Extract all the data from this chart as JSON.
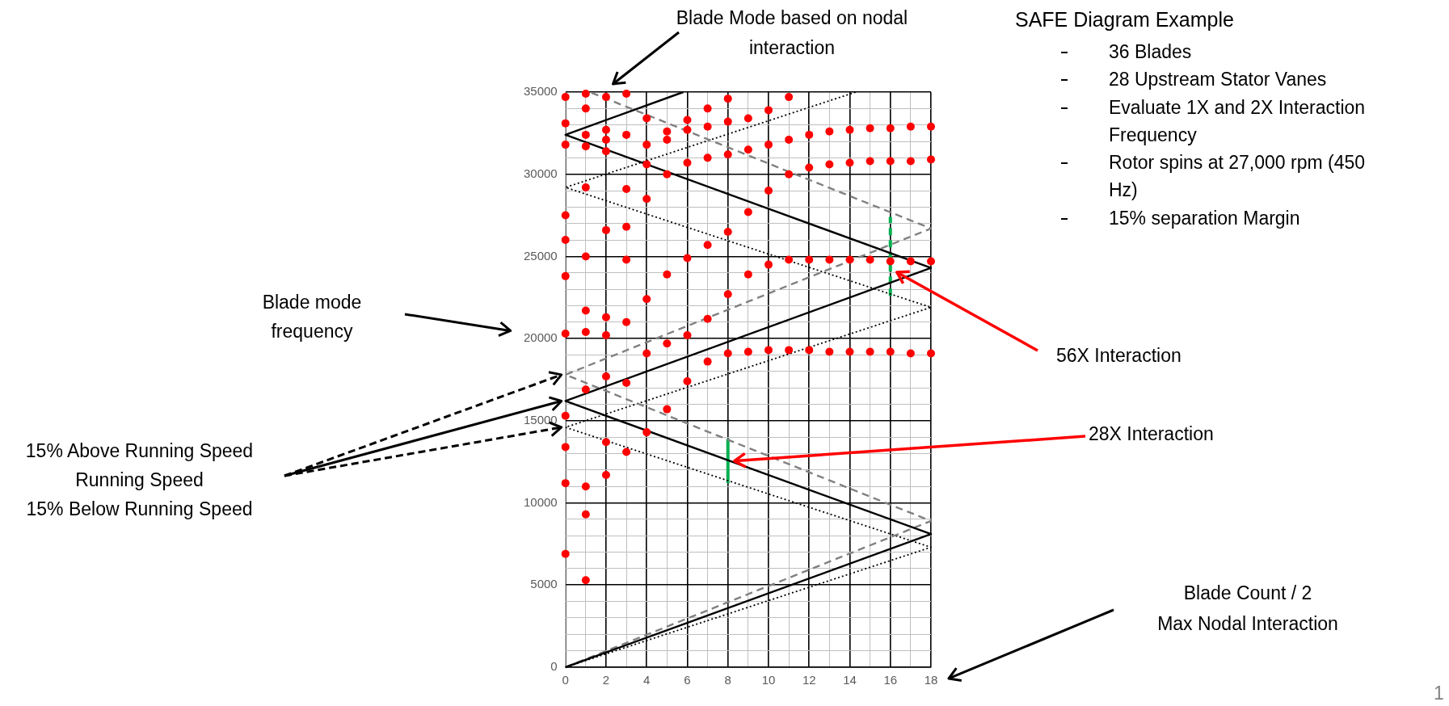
{
  "chart_data": {
    "type": "scatter",
    "title": "SAFE Diagram Example",
    "annotations": [
      "Blade Mode based on nodal interaction",
      "Blade mode frequency",
      "15% Above Running Speed",
      "Running Speed",
      "15% Below Running Speed",
      "56X Interaction",
      "28X Interaction",
      "Blade Count / 2",
      "Max Nodal Interaction",
      "1",
      "36 Blades",
      "28 Upstream Stator Vanes",
      "Evaluate 1X and 2X Interaction Frequency",
      "Rotor spins at 27,000 rpm (450 Hz)",
      "15% separation Margin"
    ],
    "series": [
      {
        "color": "#ff0000",
        "marker": "circle",
        "x": [
          0,
          0,
          0,
          0,
          0,
          0,
          0,
          0,
          0,
          0,
          0,
          1,
          1,
          1,
          1,
          1,
          1,
          1,
          1,
          1,
          1,
          1,
          1,
          2,
          2,
          2,
          2,
          2,
          2,
          2,
          2,
          2,
          2,
          3,
          3,
          3,
          3,
          3,
          3,
          3,
          3,
          4,
          4,
          4,
          4,
          4,
          4,
          4,
          5,
          5,
          5,
          5,
          5,
          5,
          6,
          6,
          6,
          6,
          6,
          6,
          7,
          7,
          7,
          7,
          7,
          7,
          8,
          8,
          8,
          8,
          8,
          8,
          9,
          9,
          9,
          9,
          9,
          10,
          10,
          10,
          10,
          10,
          11,
          11,
          11,
          11,
          11,
          12,
          12,
          12,
          12,
          13,
          13,
          13,
          13,
          14,
          14,
          14,
          14,
          15,
          15,
          15,
          15,
          16,
          16,
          16,
          16,
          17,
          17,
          17,
          17,
          18,
          18,
          18,
          18
        ],
        "values": [
          34700,
          33100,
          31800,
          27500,
          26000,
          23800,
          20300,
          15300,
          13400,
          11200,
          6900,
          34900,
          34000,
          32400,
          31700,
          29200,
          25000,
          21700,
          20400,
          16900,
          11000,
          9300,
          5300,
          34700,
          32700,
          32100,
          31400,
          26600,
          21300,
          20200,
          17700,
          13700,
          11700,
          34900,
          32400,
          29100,
          26800,
          24800,
          21000,
          17300,
          13100,
          33400,
          31800,
          30600,
          28500,
          22400,
          19100,
          14300,
          32600,
          32100,
          30000,
          23900,
          19700,
          15700,
          33300,
          32700,
          30700,
          24900,
          20200,
          17400,
          34000,
          32900,
          31000,
          25700,
          21200,
          18600,
          34600,
          33200,
          31200,
          26500,
          22700,
          19100,
          33400,
          31500,
          27700,
          23900,
          19200,
          33900,
          31800,
          29000,
          24500,
          19300,
          34700,
          32100,
          30000,
          24800,
          19300,
          32400,
          30400,
          24800,
          19300,
          32600,
          30600,
          24800,
          19200,
          32700,
          30700,
          24800,
          19200,
          32800,
          30800,
          24800,
          19200,
          32800,
          30800,
          24700,
          19200,
          32900,
          30800,
          24700,
          19100,
          32900,
          30900,
          24700,
          19100
        ]
      },
      {
        "type": "line",
        "color": "#000000",
        "marker": "none",
        "line_style": "solid",
        "x": [
          0,
          18,
          0,
          18,
          0,
          5.8
        ],
        "values": [
          0,
          8100,
          16200,
          24300,
          32400,
          35000
        ]
      },
      {
        "type": "line",
        "color": "#808080",
        "marker": "none",
        "line_style": "dashed",
        "x": [
          0,
          18,
          0,
          18,
          1.2
        ],
        "values": [
          0,
          8900,
          17800,
          26700,
          35000
        ]
      },
      {
        "type": "line",
        "color": "#000000",
        "marker": "none",
        "line_style": "dotted",
        "x": [
          0,
          18,
          0,
          18,
          0,
          14.3
        ],
        "values": [
          0,
          7300,
          14600,
          21900,
          29200,
          35000
        ]
      },
      {
        "type": "line",
        "color": "#00b050",
        "marker": "none",
        "line_style": "solid",
        "x": [
          8,
          8
        ],
        "values": [
          11200,
          13900
        ]
      },
      {
        "type": "line",
        "color": "#00b050",
        "marker": "none",
        "line_style": "dashed",
        "x": [
          16,
          16
        ],
        "values": [
          22600,
          27400
        ]
      }
    ],
    "xlim": [
      0,
      18
    ],
    "xticks": [
      0,
      {
        "value": 1,
        "label": null
      },
      2,
      {
        "value": 3,
        "label": null
      },
      4,
      {
        "value": 5,
        "label": null
      },
      6,
      {
        "value": 7,
        "label": null
      },
      8,
      {
        "value": 9,
        "label": null
      },
      10,
      {
        "value": 11,
        "label": null
      },
      12,
      {
        "value": 13,
        "label": null
      },
      14,
      {
        "value": 15,
        "label": null
      },
      16,
      {
        "value": 17,
        "label": null
      },
      18
    ],
    "ylim": [
      0,
      35000
    ],
    "yticks": [
      0,
      {
        "value": 1000,
        "label": null
      },
      {
        "value": 2000,
        "label": null
      },
      {
        "value": 3000,
        "label": null
      },
      {
        "value": 4000,
        "label": null
      },
      5000,
      {
        "value": 6000,
        "label": null
      },
      {
        "value": 7000,
        "label": null
      },
      {
        "value": 8000,
        "label": null
      },
      {
        "value": 9000,
        "label": null
      },
      10000,
      {
        "value": 11000,
        "label": null
      },
      {
        "value": 12000,
        "label": null
      },
      {
        "value": 13000,
        "label": null
      },
      {
        "value": 14000,
        "label": null
      },
      15000,
      {
        "value": 16000,
        "label": null
      },
      {
        "value": 17000,
        "label": null
      },
      {
        "value": 18000,
        "label": null
      },
      {
        "value": 19000,
        "label": null
      },
      20000,
      {
        "value": 21000,
        "label": null
      },
      {
        "value": 22000,
        "label": null
      },
      {
        "value": 23000,
        "label": null
      },
      {
        "value": 24000,
        "label": null
      },
      25000,
      {
        "value": 26000,
        "label": null
      },
      {
        "value": 27000,
        "label": null
      },
      {
        "value": 28000,
        "label": null
      },
      {
        "value": 29000,
        "label": null
      },
      30000,
      {
        "value": 31000,
        "label": null
      },
      {
        "value": 32000,
        "label": null
      },
      {
        "value": 33000,
        "label": null
      },
      {
        "value": 34000,
        "label": null
      },
      35000
    ],
    "grid": true
  }
}
